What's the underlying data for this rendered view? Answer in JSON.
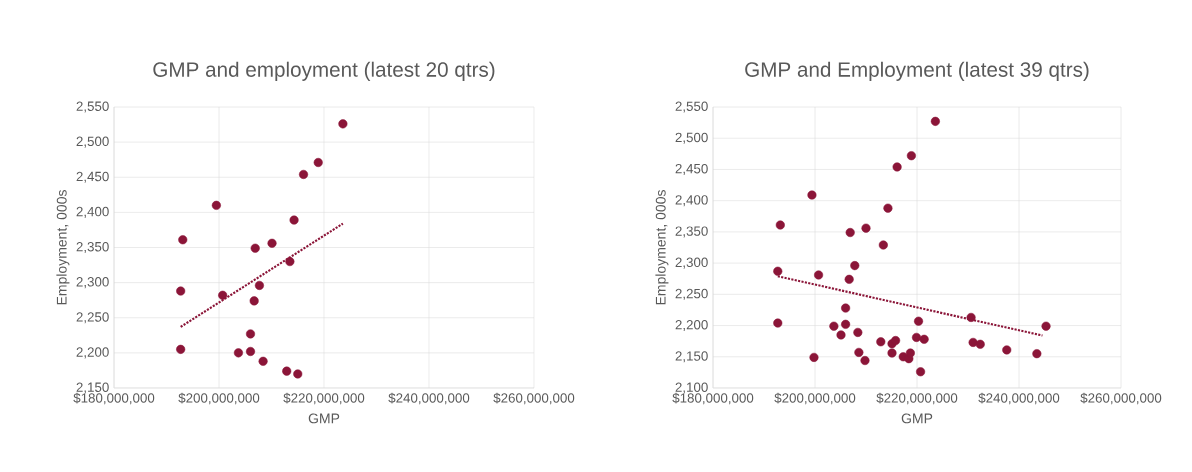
{
  "chart_data": [
    {
      "type": "scatter",
      "title": "GMP and employment (latest 20 qtrs)",
      "xlabel": "GMP",
      "ylabel": "Employment, 000s",
      "grid": true,
      "xlim": [
        180000000,
        260000000
      ],
      "ylim": [
        2150,
        2550
      ],
      "xticks": [
        {
          "value": 180000000,
          "label": "$180,000,000"
        },
        {
          "value": 200000000,
          "label": "$200,000,000"
        },
        {
          "value": 220000000,
          "label": "$220,000,000"
        },
        {
          "value": 240000000,
          "label": "$240,000,000"
        },
        {
          "value": 260000000,
          "label": "$260,000,000"
        }
      ],
      "yticks": [
        {
          "value": 2150,
          "label": "2,150"
        },
        {
          "value": 2200,
          "label": "2,200"
        },
        {
          "value": 2250,
          "label": "2,250"
        },
        {
          "value": 2300,
          "label": "2,300"
        },
        {
          "value": 2350,
          "label": "2,350"
        },
        {
          "value": 2400,
          "label": "2,400"
        },
        {
          "value": 2450,
          "label": "2,450"
        },
        {
          "value": 2500,
          "label": "2,500"
        },
        {
          "value": 2550,
          "label": "2,550"
        }
      ],
      "series": [
        {
          "color": "#8b1538",
          "marker": "circle",
          "x": [
            193100000,
            192700000,
            192700000,
            199500000,
            200700000,
            203700000,
            206000000,
            206000000,
            206900000,
            206700000,
            207700000,
            208400000,
            210100000,
            212900000,
            213500000,
            214300000,
            215000000,
            216100000,
            218900000,
            223600000
          ],
          "values": [
            2361,
            2288,
            2205,
            2410,
            2282,
            2200,
            2227,
            2202,
            2349,
            2274,
            2296,
            2188,
            2356,
            2174,
            2330,
            2389,
            2170,
            2454,
            2471,
            2526
          ]
        },
        {
          "type": "line",
          "line_style": "dotted",
          "marker": "none",
          "color": "#8b1538",
          "x": [
            192700000,
            223600000
          ],
          "values": [
            2237,
            2384
          ]
        }
      ]
    },
    {
      "type": "scatter",
      "title": "GMP and Employment (latest 39 qtrs)",
      "xlabel": "GMP",
      "ylabel": "Employment, 000s",
      "grid": true,
      "xlim": [
        180000000,
        260000000
      ],
      "ylim": [
        2100,
        2550
      ],
      "xticks": [
        {
          "value": 180000000,
          "label": "$180,000,000"
        },
        {
          "value": 200000000,
          "label": "$200,000,000"
        },
        {
          "value": 220000000,
          "label": "$220,000,000"
        },
        {
          "value": 240000000,
          "label": "$240,000,000"
        },
        {
          "value": 260000000,
          "label": "$260,000,000"
        }
      ],
      "yticks": [
        {
          "value": 2100,
          "label": "2,100"
        },
        {
          "value": 2150,
          "label": "2,150"
        },
        {
          "value": 2200,
          "label": "2,200"
        },
        {
          "value": 2250,
          "label": "2,250"
        },
        {
          "value": 2300,
          "label": "2,300"
        },
        {
          "value": 2350,
          "label": "2,350"
        },
        {
          "value": 2400,
          "label": "2,400"
        },
        {
          "value": 2450,
          "label": "2,450"
        },
        {
          "value": 2500,
          "label": "2,500"
        },
        {
          "value": 2550,
          "label": "2,550"
        }
      ],
      "series": [
        {
          "color": "#8b1538",
          "marker": "circle",
          "x": [
            193200000,
            192700000,
            192700000,
            199400000,
            199800000,
            200700000,
            203700000,
            205100000,
            206000000,
            206000000,
            206900000,
            206700000,
            207800000,
            208400000,
            208600000,
            209800000,
            210000000,
            212900000,
            213400000,
            214300000,
            215100000,
            215800000,
            215100000,
            216100000,
            217300000,
            218400000,
            218700000,
            218900000,
            219900000,
            220300000,
            221400000,
            220700000,
            223600000,
            230600000,
            231000000,
            232400000,
            237600000,
            243500000,
            245300000
          ],
          "values": [
            2361,
            2287,
            2204,
            2409,
            2149,
            2281,
            2199,
            2185,
            2228,
            2202,
            2349,
            2274,
            2296,
            2189,
            2157,
            2144,
            2356,
            2174,
            2329,
            2388,
            2171,
            2176,
            2156,
            2454,
            2150,
            2147,
            2156,
            2472,
            2181,
            2207,
            2178,
            2126,
            2527,
            2213,
            2173,
            2170,
            2161,
            2155,
            2199
          ]
        },
        {
          "type": "line",
          "line_style": "dotted",
          "marker": "none",
          "color": "#8b1538",
          "x": [
            192700000,
            244600000
          ],
          "values": [
            2279,
            2184
          ]
        }
      ]
    }
  ]
}
